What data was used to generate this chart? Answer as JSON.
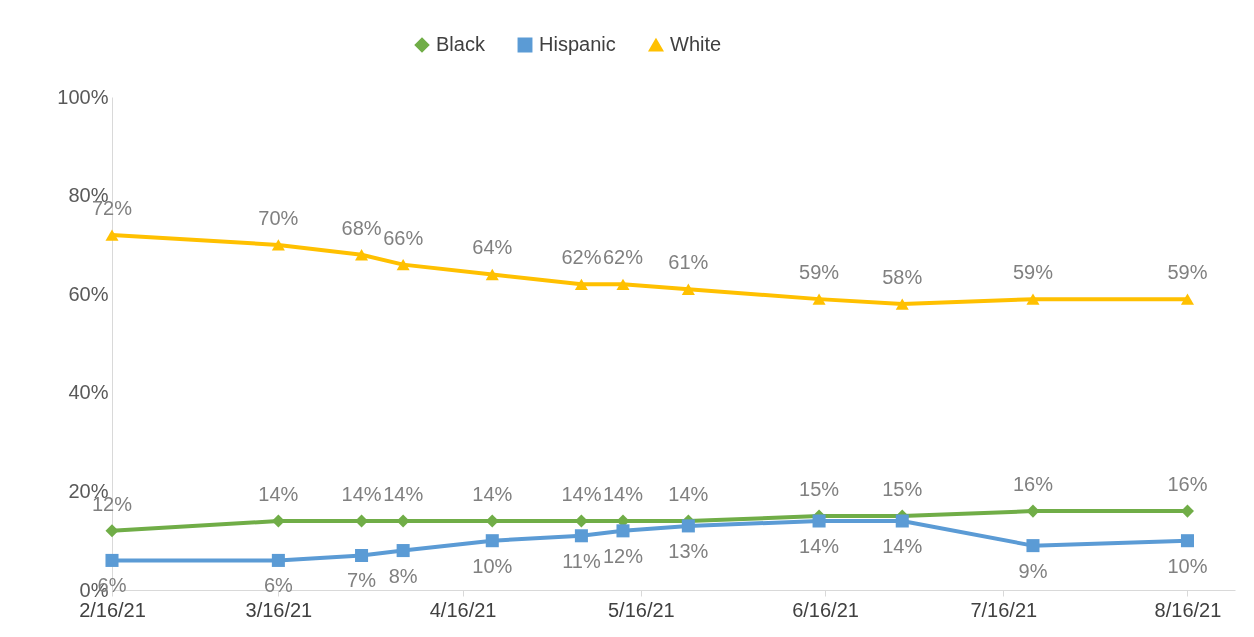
{
  "chart_data": {
    "type": "line",
    "x": [
      "2021-02-16",
      "2021-03-16",
      "2021-03-30",
      "2021-04-06",
      "2021-04-21",
      "2021-05-06",
      "2021-05-13",
      "2021-05-24",
      "2021-06-15",
      "2021-06-29",
      "2021-07-21",
      "2021-08-16"
    ],
    "series": [
      {
        "name": "Black",
        "color": "#70ad47",
        "marker": "diamond",
        "values": [
          12,
          14,
          14,
          14,
          14,
          14,
          14,
          14,
          15,
          15,
          16,
          16
        ],
        "value_labels": [
          "12%",
          "14%",
          "14%",
          "14%",
          "14%",
          "14%",
          "14%",
          "14%",
          "15%",
          "15%",
          "16%",
          "16%"
        ]
      },
      {
        "name": "Hispanic",
        "color": "#5b9bd5",
        "marker": "square",
        "values": [
          6,
          6,
          7,
          8,
          10,
          11,
          12,
          13,
          14,
          14,
          9,
          10
        ],
        "value_labels": [
          "6%",
          "6%",
          "7%",
          "8%",
          "10%",
          "11%",
          "12%",
          "13%",
          "14%",
          "14%",
          "9%",
          "10%"
        ]
      },
      {
        "name": "White",
        "color": "#ffc000",
        "marker": "triangle",
        "values": [
          72,
          70,
          68,
          66,
          64,
          62,
          62,
          61,
          59,
          58,
          59,
          59
        ],
        "value_labels": [
          "72%",
          "70%",
          "68%",
          "66%",
          "64%",
          "62%",
          "62%",
          "61%",
          "59%",
          "58%",
          "59%",
          "59%"
        ]
      }
    ],
    "ylim": [
      0,
      100
    ],
    "yticks": [
      {
        "value": 0,
        "label": "0%"
      },
      {
        "value": 20,
        "label": "20%"
      },
      {
        "value": 40,
        "label": "40%"
      },
      {
        "value": 60,
        "label": "60%"
      },
      {
        "value": 80,
        "label": "80%"
      },
      {
        "value": 100,
        "label": "100%"
      }
    ],
    "xlim": [
      "2021-02-16",
      "2021-08-24"
    ],
    "xticks": [
      {
        "value": "2021-02-16",
        "label": "2/16/21"
      },
      {
        "value": "2021-03-16",
        "label": "3/16/21"
      },
      {
        "value": "2021-04-16",
        "label": "4/16/21"
      },
      {
        "value": "2021-05-16",
        "label": "5/16/21"
      },
      {
        "value": "2021-06-16",
        "label": "6/16/21"
      },
      {
        "value": "2021-07-16",
        "label": "7/16/21"
      },
      {
        "value": "2021-08-16",
        "label": "8/16/21"
      }
    ],
    "legend": "top",
    "grid": false,
    "line_style": "solid"
  }
}
